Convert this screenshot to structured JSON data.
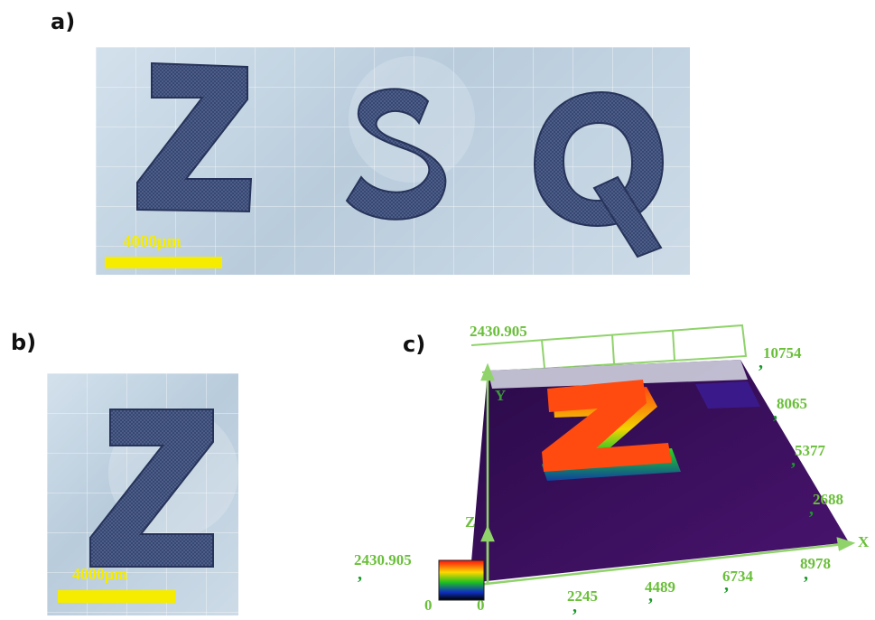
{
  "panels": {
    "a": {
      "label": "a)",
      "letters": "ZSQ",
      "scale_label": "4000μm"
    },
    "b": {
      "label": "b)",
      "letters": "Z",
      "scale_label": "4000μm"
    },
    "c": {
      "label": "c)",
      "z_max_top": "2430.905",
      "y_axis_label": "Y",
      "z_axis_label": "Z",
      "x_axis_label": "X",
      "y_ticks": [
        "10754",
        "8065",
        "5377",
        "2688"
      ],
      "x_ticks": [
        "2245",
        "4489",
        "6734",
        "8978"
      ],
      "origin_label": "0",
      "colorbar_max": "2430.905",
      "colorbar_min": "0",
      "surface_letter": "Z"
    }
  },
  "colors": {
    "scale_bar": "#f5ec00",
    "letter_fill": "#2f3d66",
    "axis_text": "#6abf3a",
    "surface": "#3a0a5c",
    "height_high": "#ff4a10"
  }
}
